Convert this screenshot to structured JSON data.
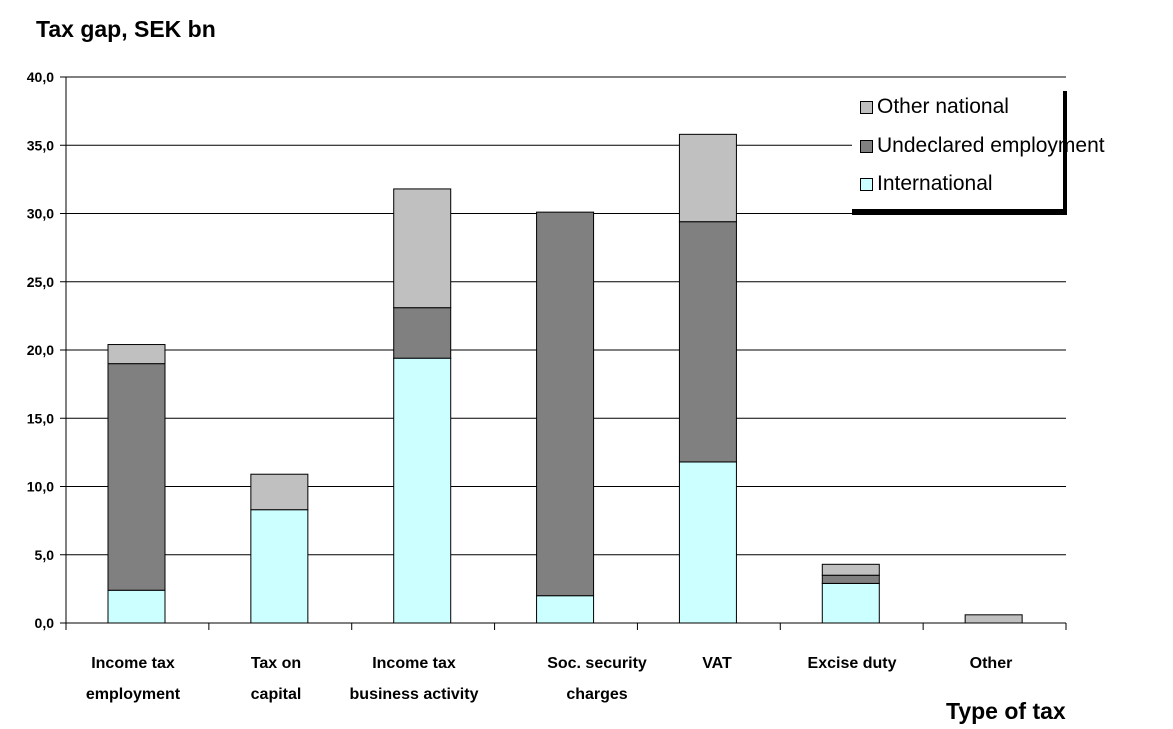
{
  "chart_data": {
    "type": "bar",
    "stacked": true,
    "ylabel": "Tax gap, SEK bn",
    "xlabel": "Type of tax",
    "ylim": [
      0,
      40
    ],
    "yticks": [
      "0,0",
      "5,0",
      "10,0",
      "15,0",
      "20,0",
      "25,0",
      "30,0",
      "35,0",
      "40,0"
    ],
    "grid": true,
    "legend_position": "top-right",
    "categories": [
      [
        "Income tax",
        "employment"
      ],
      [
        "Tax on",
        "capital"
      ],
      [
        "Income tax",
        "business activity"
      ],
      [
        "Soc. security",
        "charges"
      ],
      [
        "VAT"
      ],
      [
        "Excise duty"
      ],
      [
        "Other"
      ]
    ],
    "series": [
      {
        "name": "International",
        "color": "#ccffff",
        "values": [
          2.4,
          8.3,
          19.4,
          2.0,
          11.8,
          2.9,
          0.0
        ]
      },
      {
        "name": "Undeclared employment",
        "color": "#808080",
        "values": [
          16.6,
          0.0,
          3.7,
          28.1,
          17.6,
          0.6,
          0.0
        ]
      },
      {
        "name": "Other national",
        "color": "#c0c0c0",
        "values": [
          1.4,
          2.6,
          8.7,
          0.0,
          6.4,
          0.8,
          0.6
        ]
      }
    ],
    "legend_order": [
      "Other national",
      "Undeclared employment",
      "International"
    ]
  }
}
